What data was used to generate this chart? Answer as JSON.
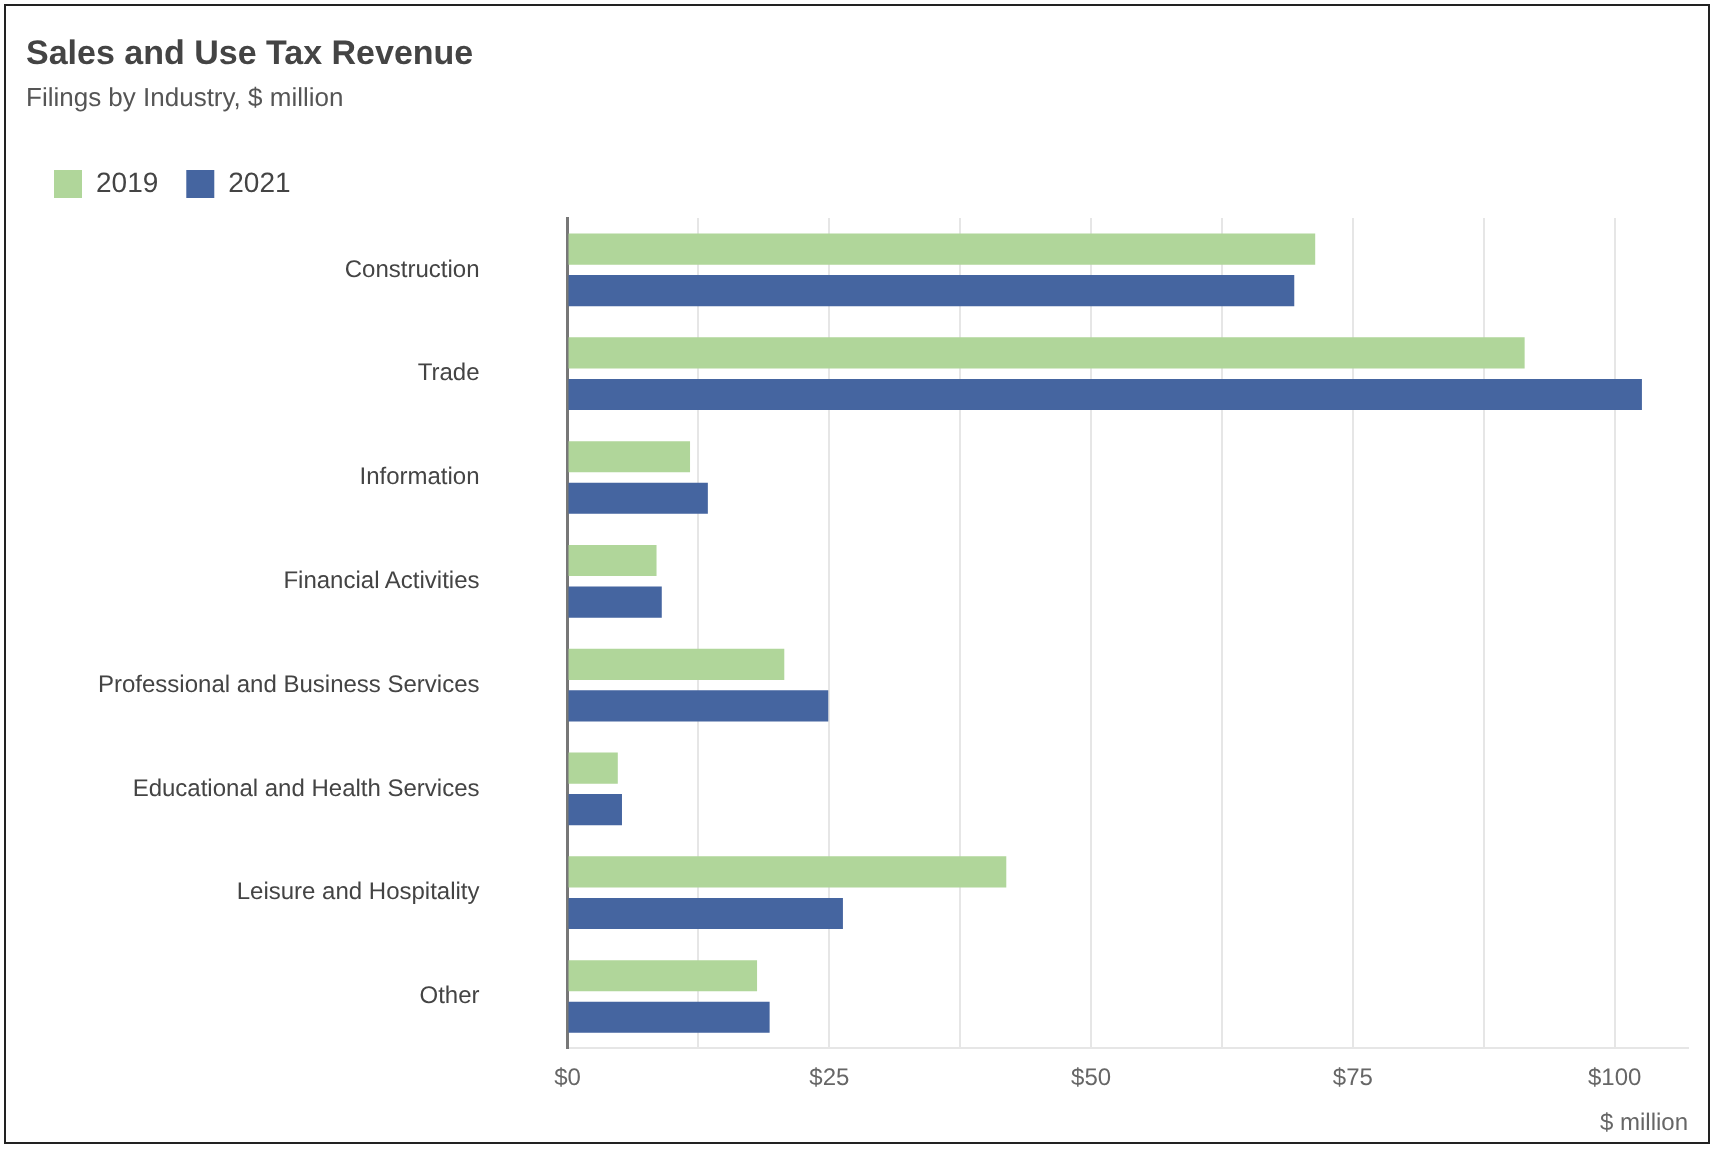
{
  "chart_data": {
    "type": "bar",
    "orientation": "horizontal",
    "title": "Sales and Use Tax Revenue",
    "subtitle": "Filings by Industry, $ million",
    "xlabel": "$ million",
    "categories": [
      "Construction",
      "Trade",
      "Information",
      "Financial Activities",
      "Professional and Business Services",
      "Educational and Health Services",
      "Leisure and Hospitality",
      "Other"
    ],
    "series": [
      {
        "name": "2019",
        "color": "#b0d69a",
        "values": [
          71.4,
          91.4,
          11.7,
          8.5,
          20.7,
          4.8,
          41.9,
          18.1
        ]
      },
      {
        "name": "2021",
        "color": "#4565a0",
        "values": [
          69.4,
          102.6,
          13.4,
          9.0,
          24.9,
          5.2,
          26.3,
          19.3
        ]
      }
    ],
    "xlim": [
      0,
      107
    ],
    "xticks": [
      {
        "value": 0,
        "label": "$0"
      },
      {
        "value": 12.5,
        "label": null
      },
      {
        "value": 25,
        "label": "$25"
      },
      {
        "value": 37.5,
        "label": null
      },
      {
        "value": 50,
        "label": "$50"
      },
      {
        "value": 62.5,
        "label": null
      },
      {
        "value": 75,
        "label": "$75"
      },
      {
        "value": 87.5,
        "label": null
      },
      {
        "value": 100,
        "label": "$100"
      }
    ],
    "grid": "x",
    "legend": "top left"
  }
}
